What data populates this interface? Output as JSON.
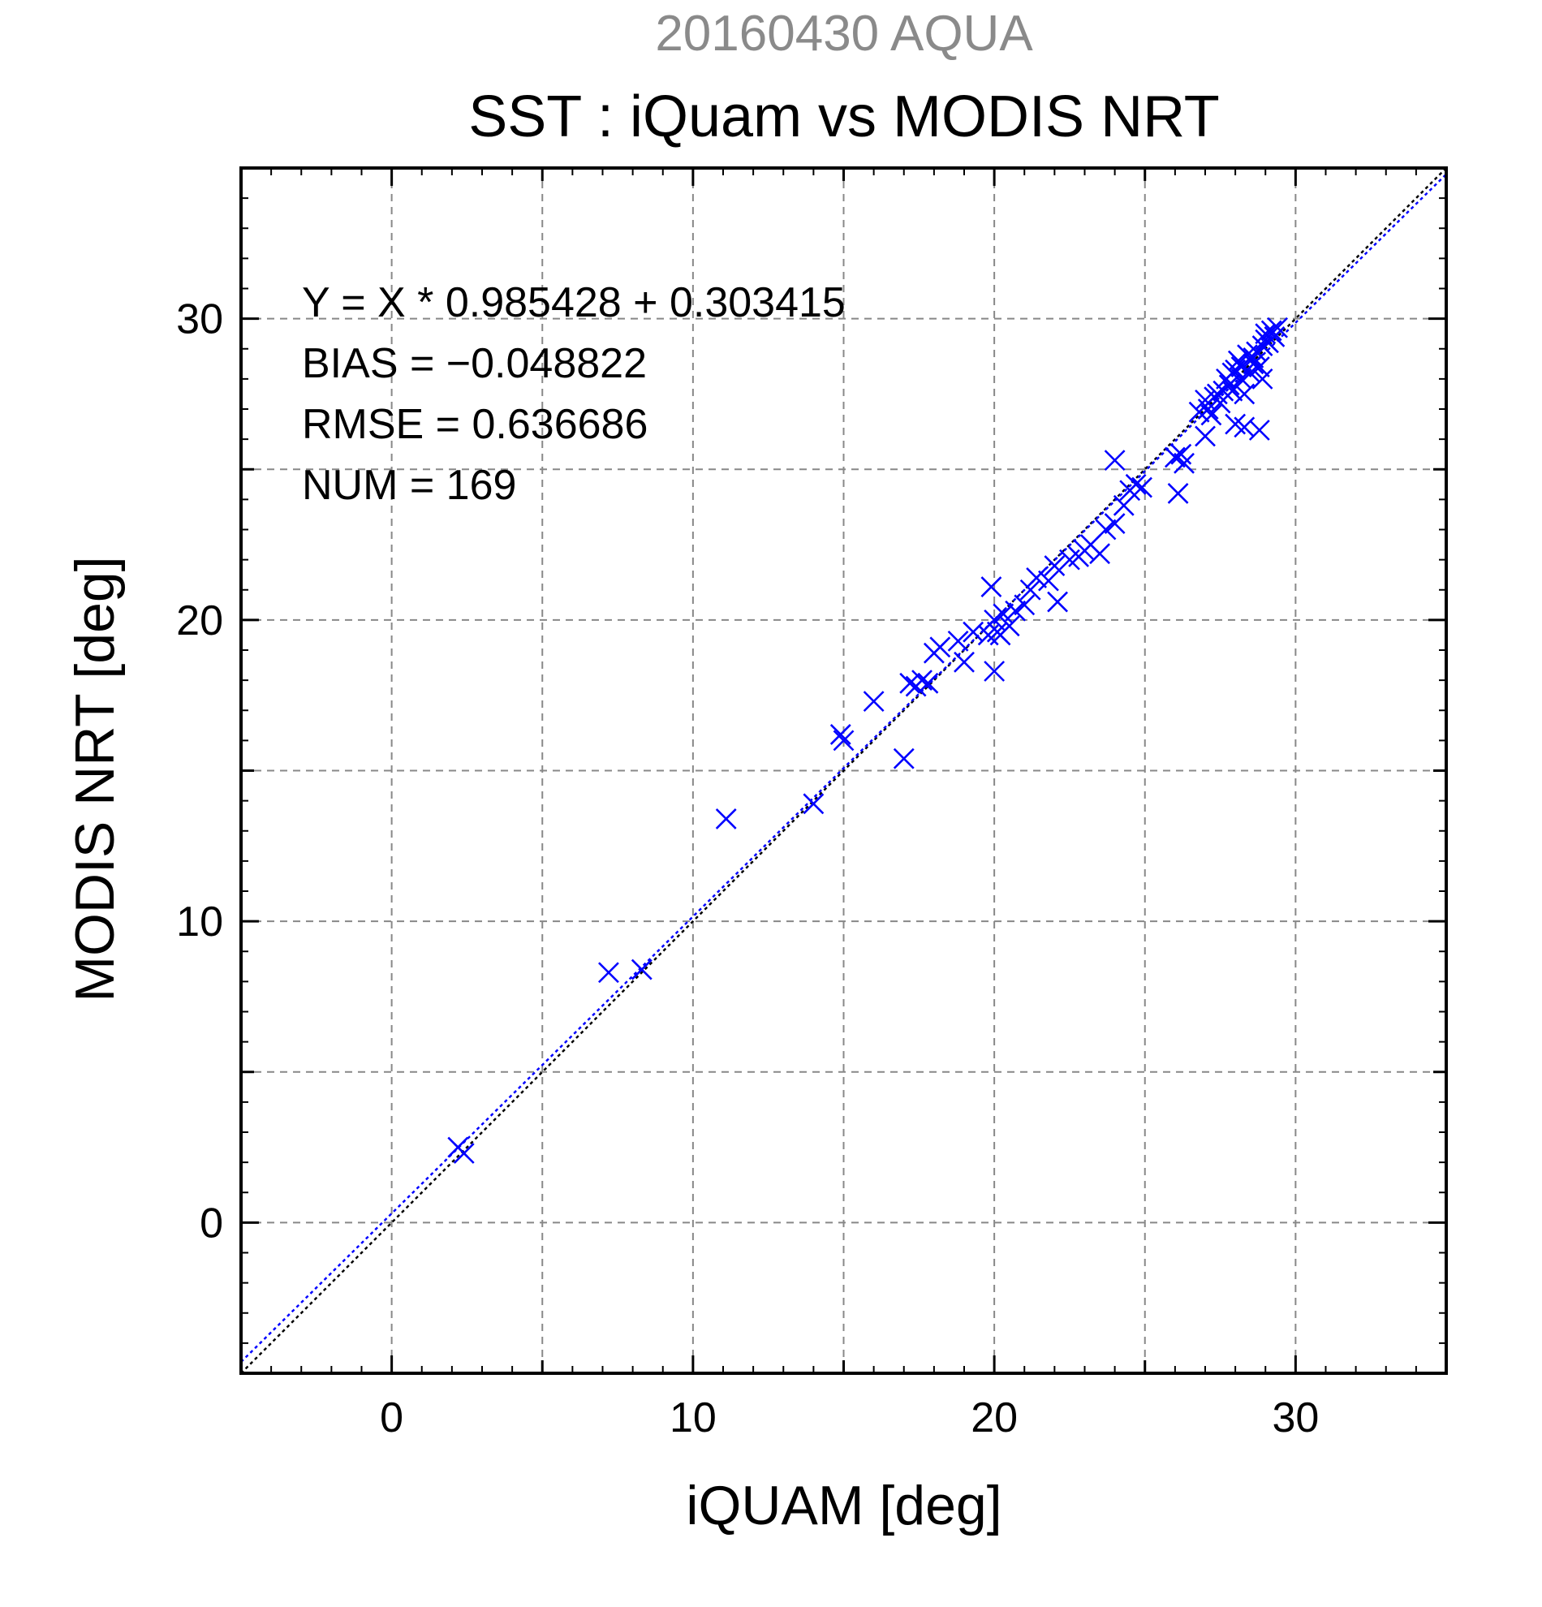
{
  "chart_data": {
    "type": "scatter",
    "subtitle": "20160430 AQUA",
    "title": "SST : iQuam vs MODIS NRT",
    "xlabel": "iQUAM [deg]",
    "ylabel": "MODIS NRT [deg]",
    "xlim": [
      -5,
      35
    ],
    "ylim": [
      -5,
      35
    ],
    "xticks": [
      0,
      10,
      20,
      30
    ],
    "yticks": [
      0,
      10,
      20,
      30
    ],
    "grid": true,
    "stats": {
      "equation": "Y = X * 0.985428 + 0.303415",
      "bias": "BIAS = −0.048822",
      "rmse": "RMSE = 0.636686",
      "num": "NUM = 169"
    },
    "regression": {
      "slope": 0.985428,
      "intercept": 0.303415,
      "color": "#0000ff"
    },
    "identity_line_color": "#000000",
    "marker_color": "#0000ff",
    "points": [
      [
        2.2,
        2.5
      ],
      [
        2.4,
        2.3
      ],
      [
        7.2,
        8.3
      ],
      [
        8.3,
        8.4
      ],
      [
        11.1,
        13.4
      ],
      [
        14.0,
        13.9
      ],
      [
        14.9,
        16.2
      ],
      [
        15.0,
        16.0
      ],
      [
        16.0,
        17.3
      ],
      [
        17.0,
        15.4
      ],
      [
        17.2,
        17.9
      ],
      [
        17.4,
        17.8
      ],
      [
        17.6,
        18.0
      ],
      [
        17.8,
        17.9
      ],
      [
        18.0,
        18.9
      ],
      [
        18.2,
        19.1
      ],
      [
        18.8,
        19.3
      ],
      [
        19.0,
        18.6
      ],
      [
        19.3,
        19.6
      ],
      [
        19.8,
        19.5
      ],
      [
        19.9,
        21.1
      ],
      [
        20.0,
        18.3
      ],
      [
        20.0,
        20.0
      ],
      [
        20.1,
        19.6
      ],
      [
        20.2,
        19.5
      ],
      [
        20.3,
        20.2
      ],
      [
        20.5,
        19.8
      ],
      [
        20.7,
        20.3
      ],
      [
        21.0,
        20.5
      ],
      [
        21.2,
        21.0
      ],
      [
        21.4,
        21.4
      ],
      [
        21.8,
        21.3
      ],
      [
        22.0,
        21.8
      ],
      [
        22.1,
        20.6
      ],
      [
        22.5,
        22.0
      ],
      [
        22.8,
        22.1
      ],
      [
        23.0,
        22.3
      ],
      [
        23.2,
        22.5
      ],
      [
        23.5,
        22.2
      ],
      [
        23.7,
        23.0
      ],
      [
        24.0,
        23.2
      ],
      [
        24.0,
        25.3
      ],
      [
        24.3,
        23.8
      ],
      [
        24.5,
        24.3
      ],
      [
        24.7,
        24.5
      ],
      [
        24.9,
        24.4
      ],
      [
        26.0,
        25.4
      ],
      [
        26.1,
        24.2
      ],
      [
        26.2,
        25.5
      ],
      [
        26.3,
        25.2
      ],
      [
        26.8,
        26.9
      ],
      [
        27.0,
        26.1
      ],
      [
        27.0,
        27.3
      ],
      [
        27.1,
        27.0
      ],
      [
        27.2,
        26.8
      ],
      [
        27.4,
        27.5
      ],
      [
        27.6,
        27.6
      ],
      [
        27.8,
        27.8
      ],
      [
        27.9,
        27.6
      ],
      [
        28.0,
        28.3
      ],
      [
        28.0,
        26.5
      ],
      [
        28.1,
        28.6
      ],
      [
        28.2,
        28.0
      ],
      [
        28.3,
        27.5
      ],
      [
        28.3,
        26.4
      ],
      [
        28.4,
        28.8
      ],
      [
        28.5,
        28.2
      ],
      [
        28.6,
        28.5
      ],
      [
        28.7,
        28.9
      ],
      [
        28.8,
        26.3
      ],
      [
        28.8,
        28.4
      ],
      [
        28.9,
        28.0
      ],
      [
        29.0,
        29.5
      ],
      [
        29.1,
        29.2
      ],
      [
        29.2,
        29.6
      ],
      [
        29.3,
        29.4
      ],
      [
        29.4,
        29.7
      ],
      [
        27.7,
        28.0
      ],
      [
        27.3,
        27.4
      ],
      [
        28.2,
        28.4
      ],
      [
        27.9,
        28.2
      ],
      [
        28.6,
        28.7
      ],
      [
        27.5,
        27.2
      ],
      [
        28.9,
        29.1
      ],
      [
        29.0,
        29.3
      ]
    ]
  }
}
